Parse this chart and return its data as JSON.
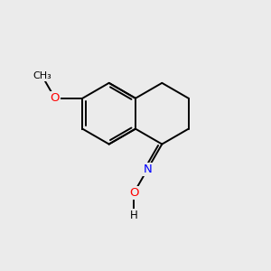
{
  "background_color": "#ebebeb",
  "bond_color": "#000000",
  "atom_colors": {
    "O": "#ff0000",
    "N": "#0000ff"
  },
  "figsize": [
    3.0,
    3.0
  ],
  "dpi": 100,
  "bond_lw": 1.4,
  "font_size": 9,
  "bl": 1.0
}
